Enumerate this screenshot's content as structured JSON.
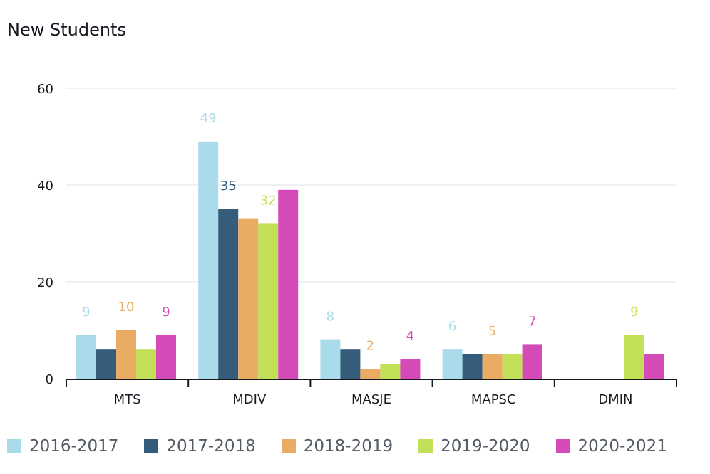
{
  "title": "New Students",
  "chart_data": {
    "type": "bar",
    "title": "New Students",
    "categories": [
      "MTS",
      "MDIV",
      "MASJE",
      "MAPSC",
      "DMIN"
    ],
    "ylim": [
      0,
      60
    ],
    "yticks": [
      0,
      20,
      40,
      60
    ],
    "grid": true,
    "legend_position": "bottom",
    "series": [
      {
        "name": "2016-2017",
        "color": "#a9dbea",
        "values": [
          9,
          49,
          8,
          6,
          0
        ],
        "labels": [
          "9",
          "49",
          "8",
          "6",
          ""
        ]
      },
      {
        "name": "2017-2018",
        "color": "#355c7a",
        "values": [
          6,
          35,
          6,
          5,
          0
        ],
        "labels": [
          "",
          "35",
          "",
          "",
          ""
        ]
      },
      {
        "name": "2018-2019",
        "color": "#eaac65",
        "values": [
          10,
          33,
          2,
          5,
          0
        ],
        "labels": [
          "10",
          "",
          "2",
          "5",
          ""
        ]
      },
      {
        "name": "2019-2020",
        "color": "#c2e057",
        "values": [
          6,
          32,
          3,
          5,
          9
        ],
        "labels": [
          "",
          "32",
          "",
          "",
          "9"
        ]
      },
      {
        "name": "2020-2021",
        "color": "#d44bb7",
        "values": [
          9,
          39,
          4,
          7,
          5
        ],
        "labels": [
          "9",
          "",
          "4",
          "7",
          ""
        ]
      }
    ]
  }
}
